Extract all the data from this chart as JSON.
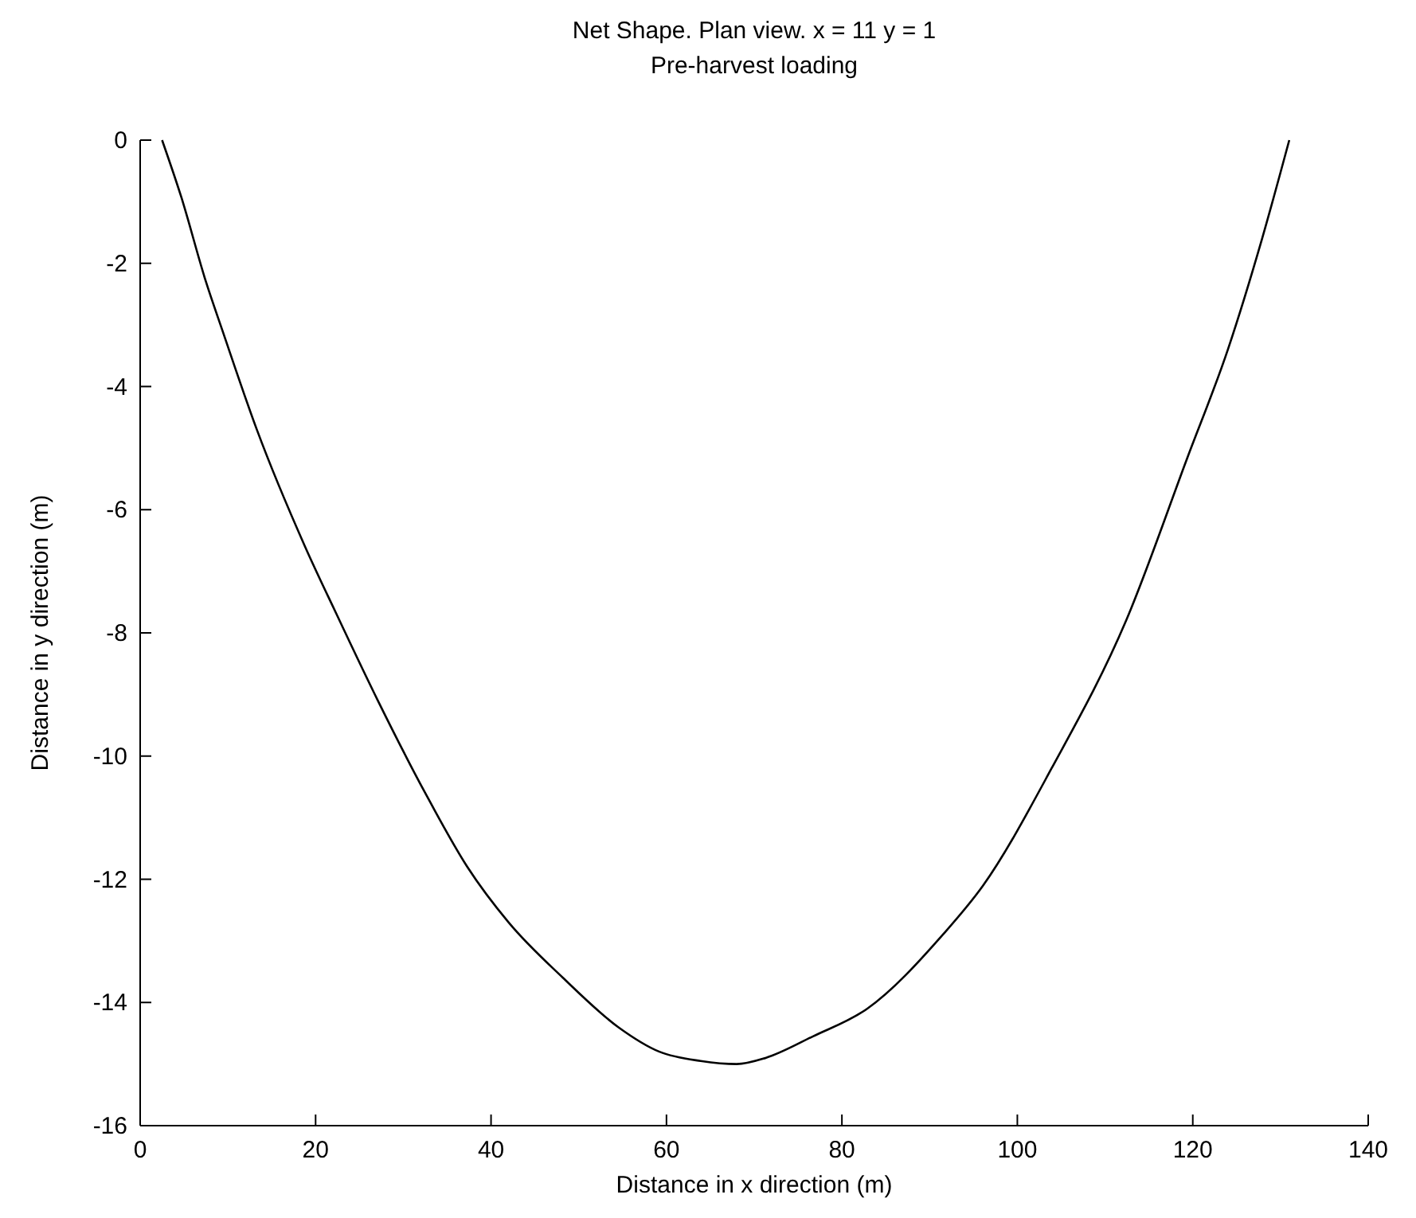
{
  "chart_data": {
    "type": "line",
    "title": "Net Shape. Plan view. x = 11 y = 1",
    "subtitle": "Pre-harvest loading",
    "xlabel": "Distance in x direction (m)",
    "ylabel": "Distance in y direction (m)",
    "xlim": [
      0,
      140
    ],
    "xticks": [
      0,
      20,
      40,
      60,
      80,
      100,
      120,
      140
    ],
    "ylim": [
      -16,
      0
    ],
    "yticks": [
      -16,
      -14,
      -12,
      -10,
      -8,
      -6,
      -4,
      -2,
      0
    ],
    "grid": false,
    "series": [
      {
        "color": "#000000",
        "x": [
          2.5,
          4.7,
          7.5,
          9.4,
          13.3,
          18.8,
          22.4,
          27.1,
          32.5,
          37.3,
          42,
          48.2,
          54.5,
          59.2,
          63.9,
          68,
          71.3,
          76.7,
          82.9,
          91.5,
          96.1,
          103.9,
          112.4,
          119.4,
          124,
          127.9,
          131
        ],
        "values": [
          0,
          -0.93,
          -2.3,
          -3.1,
          -4.7,
          -6.6,
          -7.7,
          -9.1,
          -10.6,
          -11.8,
          -12.7,
          -13.6,
          -14.4,
          -14.8,
          -14.95,
          -15,
          -14.9,
          -14.55,
          -14.1,
          -12.9,
          -12.1,
          -10.2,
          -7.8,
          -5.15,
          -3.4,
          -1.6,
          0
        ]
      }
    ]
  }
}
